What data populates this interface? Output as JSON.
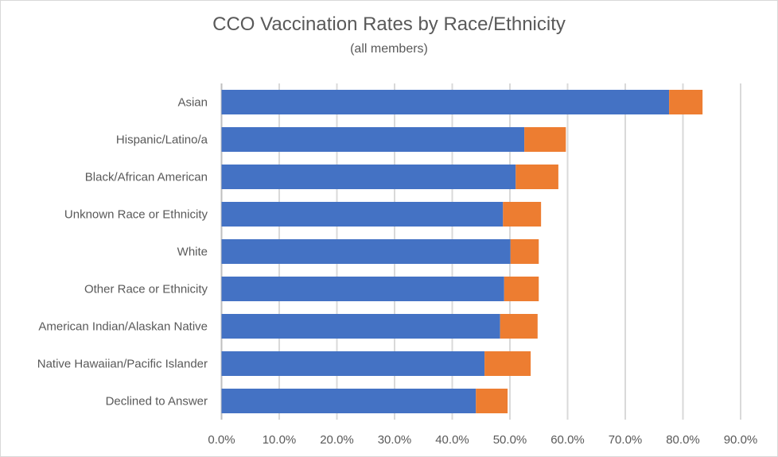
{
  "chart_data": {
    "type": "bar",
    "orientation": "horizontal",
    "stacked": true,
    "title": "CCO Vaccination Rates by Race/Ethnicity",
    "subtitle": "(all members)",
    "categories": [
      "Asian",
      "Hispanic/Latino/a",
      "Black/African American",
      "Unknown Race or Ethnicity",
      "White",
      "Other Race or Ethnicity",
      "American Indian/Alaskan Native",
      "Native Hawaiian/Pacific Islander",
      "Declined to Answer"
    ],
    "series": [
      {
        "color": "#4472c4",
        "values": [
          77.6,
          52.5,
          51.0,
          48.8,
          50.1,
          49.0,
          48.3,
          45.6,
          44.1
        ]
      },
      {
        "color": "#ed7d31",
        "values": [
          5.8,
          7.2,
          7.4,
          6.6,
          4.9,
          6.0,
          6.5,
          8.0,
          5.5
        ]
      }
    ],
    "xlim": [
      0,
      90
    ],
    "xticks": [
      "0.0%",
      "10.0%",
      "20.0%",
      "30.0%",
      "40.0%",
      "50.0%",
      "60.0%",
      "70.0%",
      "80.0%",
      "90.0%"
    ],
    "grid": "vertical",
    "legend": "none"
  }
}
